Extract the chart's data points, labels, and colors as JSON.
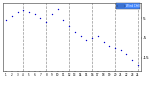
{
  "hours": [
    1,
    2,
    3,
    4,
    5,
    6,
    7,
    8,
    9,
    10,
    11,
    12,
    13,
    14,
    15,
    16,
    17,
    18,
    19,
    20,
    21,
    22,
    23,
    24
  ],
  "wind_chill": [
    4,
    6,
    8,
    9,
    8,
    7,
    5,
    3,
    7,
    10,
    4,
    1,
    -2,
    -4,
    -6,
    -5,
    -4,
    -7,
    -9,
    -10,
    -11,
    -13,
    -16,
    -19
  ],
  "line_color": "#0000cc",
  "background_color": "#ffffff",
  "grid_color": "#888888",
  "legend_color": "#4488ff",
  "legend_label": "Wind Chill",
  "yticks": [
    5,
    -5,
    -15
  ],
  "ytick_labels": [
    "5",
    "-5",
    "-15"
  ],
  "xlim": [
    0.5,
    24.5
  ],
  "ylim": [
    -22,
    13
  ],
  "grid_xticks": [
    4,
    8,
    12,
    16,
    20,
    24
  ],
  "all_xticks": [
    1,
    2,
    3,
    4,
    5,
    6,
    7,
    8,
    9,
    10,
    11,
    12,
    13,
    14,
    15,
    16,
    17,
    18,
    19,
    20,
    21,
    22,
    23,
    24
  ]
}
